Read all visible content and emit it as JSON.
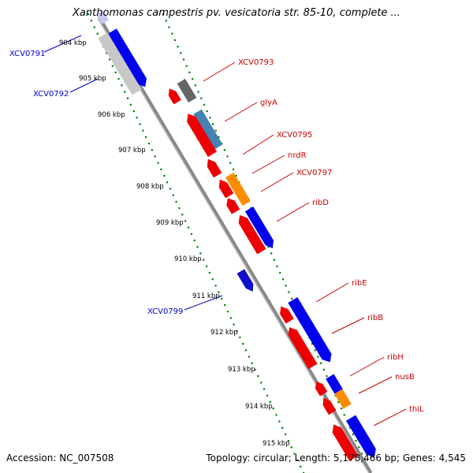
{
  "map": {
    "title": "Xanthomonas campestris pv. vesicatoria str. 85-10, complete ...",
    "accession": "Accession: NC_007508",
    "topology": "Topology: circular; Length: 5,178,466 bp; Genes: 4,545"
  },
  "colors": {
    "forward_cds": "#0000ee",
    "reverse_cds": "#ee0000",
    "rrna": "#ff8c00",
    "grey_feature": "#666666",
    "steel_feature": "#4682b4",
    "blue_label": "#0000cc",
    "red_label": "#cc0000",
    "tick_green": "#008000",
    "backbone": "#888888"
  },
  "scale_labels": [
    "904 kbp",
    "905 kbp",
    "906 kbp",
    "907 kbp",
    "908 kbp",
    "909 kbp",
    "910 kbp",
    "911 kbp",
    "912 kbp",
    "913 kbp",
    "914 kbp",
    "915 kbp"
  ],
  "gene_labels": {
    "left": [
      "XCV0791",
      "XCV0792",
      "XCV0799"
    ],
    "right": [
      "XCV0793",
      "glyA",
      "XCV0795",
      "nrdR",
      "XCV0797",
      "ribD",
      "ribE",
      "ribB",
      "ribH",
      "nusB",
      "thiL"
    ]
  }
}
